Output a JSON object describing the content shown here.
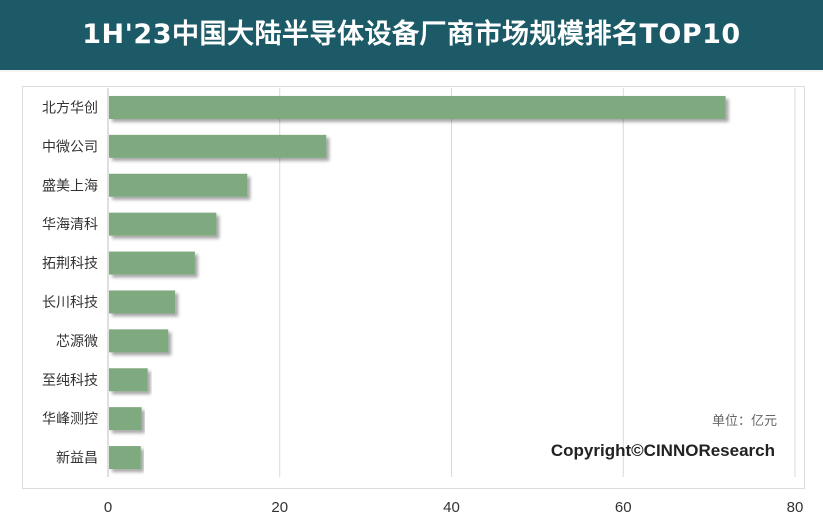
{
  "title": "1H'23中国大陆半导体设备厂商市场规模排名TOP10",
  "unit_label": "单位：亿元",
  "copyright": "Copyright©CINNOResearch",
  "chart_data": {
    "type": "bar",
    "orientation": "horizontal",
    "title": "1H'23中国大陆半导体设备厂商市场规模排名TOP10",
    "categories": [
      "北方华创",
      "中微公司",
      "盛美上海",
      "华海清科",
      "拓荆科技",
      "长川科技",
      "芯源微",
      "至纯科技",
      "华峰测控",
      "新益昌"
    ],
    "values": [
      71.8,
      25.3,
      16.1,
      12.5,
      10.0,
      7.7,
      6.9,
      4.5,
      3.8,
      3.7
    ],
    "xlabel": "",
    "ylabel": "",
    "xlim": [
      0,
      80
    ],
    "x_ticks": [
      0,
      20,
      40,
      60,
      80
    ],
    "grid": "vertical",
    "legend": "none",
    "colors": {
      "bar": "#7fa97f",
      "grid": "#d9d9d9",
      "axis_text": "#333333"
    }
  }
}
